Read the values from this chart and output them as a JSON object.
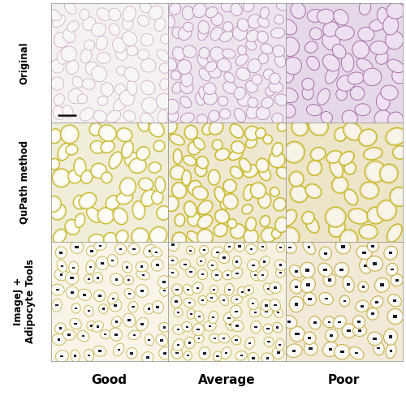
{
  "row_labels": [
    "Original",
    "QuPath method",
    "ImageJ +\nAdipocyte Tools"
  ],
  "col_labels": [
    "Good",
    "Average",
    "Poor"
  ],
  "row_label_fontsize": 8.5,
  "col_label_fontsize": 11,
  "col_label_fontweight": "bold",
  "background_color": "#ffffff",
  "figure_size": [
    5.0,
    4.88
  ],
  "dpi": 100,
  "original_bg": [
    "#f5f0f2",
    "#ede5ed",
    "#e5d8e8"
  ],
  "original_wall_color": [
    "#c8a8c0",
    "#b888b0",
    "#a870a8"
  ],
  "original_cell_fill": [
    "#f8f5f7",
    "#f2ecf4",
    "#ede0f0"
  ],
  "qupath_wall_color": "#c8b820",
  "qupath_cell_fill": [
    "#f0edd8",
    "#eee8d0",
    "#ece5c8"
  ],
  "qupath_inner_fill": [
    "#fdfcf5",
    "#faf8ee",
    "#f8f5e8"
  ],
  "imagej_bg": [
    "#f8f5e8",
    "#f5f2e0",
    "#f2ead8"
  ],
  "imagej_wall_color": "#c0a830",
  "imagej_inner_fill": "#fafaf5",
  "imagej_dot_color": "#1a1a2a",
  "scale_bar_color": "#111111"
}
